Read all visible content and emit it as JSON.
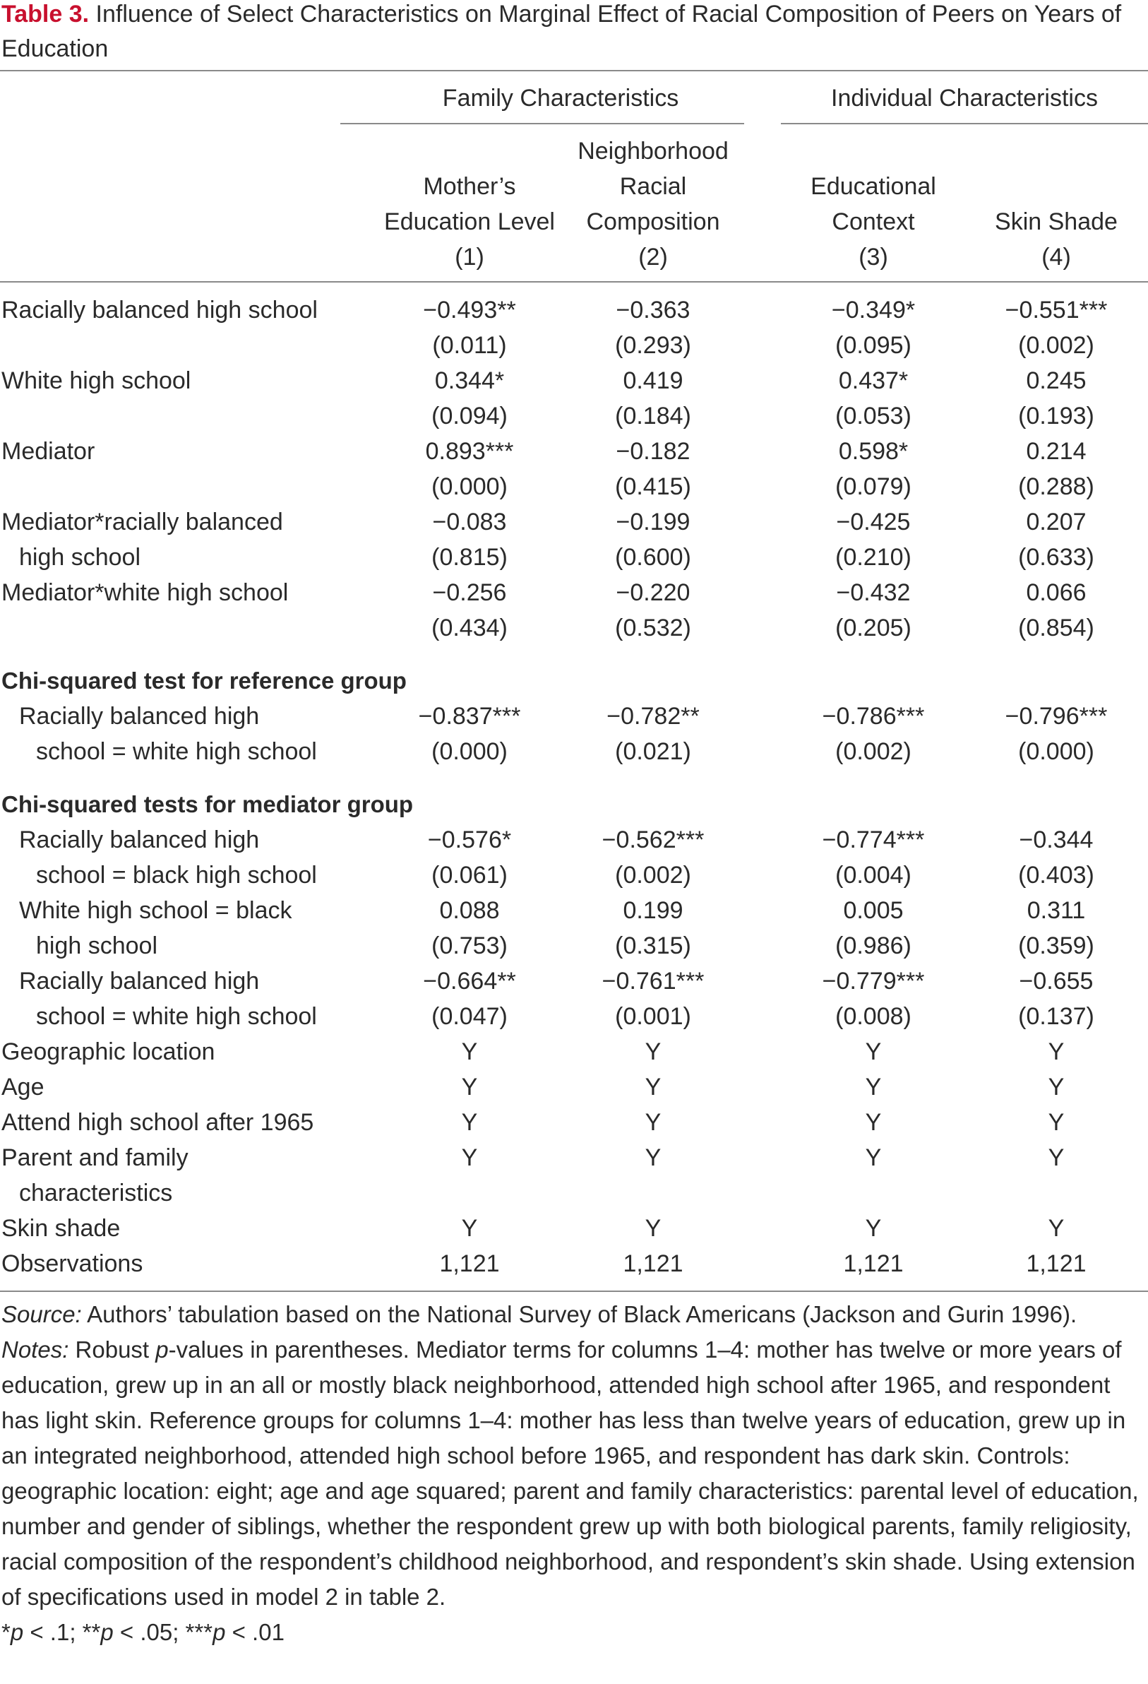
{
  "title": {
    "label": "Table 3.",
    "text": " Influence of Select Characteristics on Marginal Effect of Racial Composition of Peers on Years of Education"
  },
  "groups": [
    "Family Characteristics",
    "Individual Characteristics"
  ],
  "columns": [
    {
      "lines": [
        "Mother’s",
        "Education Level"
      ],
      "number": "(1)"
    },
    {
      "lines": [
        "Neighborhood",
        "Racial",
        "Composition"
      ],
      "number": "(2)"
    },
    {
      "lines": [
        "Educational",
        "Context"
      ],
      "number": "(3)"
    },
    {
      "lines": [
        "Skin Shade"
      ],
      "number": "(4)"
    }
  ],
  "rows": [
    {
      "label": "Racially balanced high school",
      "coef": [
        "−0.493**",
        "−0.363",
        "−0.349*",
        "−0.551***"
      ],
      "p": [
        "(0.011)",
        "(0.293)",
        "(0.095)",
        "(0.002)"
      ]
    },
    {
      "label": "White high school",
      "coef": [
        "0.344*",
        "0.419",
        "0.437*",
        "0.245"
      ],
      "p": [
        "(0.094)",
        "(0.184)",
        "(0.053)",
        "(0.193)"
      ]
    },
    {
      "label": "Mediator",
      "coef": [
        "0.893***",
        "−0.182",
        "0.598*",
        "0.214"
      ],
      "p": [
        "(0.000)",
        "(0.415)",
        "(0.079)",
        "(0.288)"
      ]
    },
    {
      "label": "Mediator*racially balanced",
      "label2": "high school",
      "coef": [
        "−0.083",
        "−0.199",
        "−0.425",
        "0.207"
      ],
      "p": [
        "(0.815)",
        "(0.600)",
        "(0.210)",
        "(0.633)"
      ]
    },
    {
      "label": "Mediator*white high school",
      "coef": [
        "−0.256",
        "−0.220",
        "−0.432",
        "0.066"
      ],
      "p": [
        "(0.434)",
        "(0.532)",
        "(0.205)",
        "(0.854)"
      ]
    }
  ],
  "ref_heading": "Chi-squared test for reference group",
  "ref_rows": [
    {
      "label": "Racially balanced high",
      "label2": "school = white high school",
      "coef": [
        "−0.837***",
        "−0.782**",
        "−0.786***",
        "−0.796***"
      ],
      "p": [
        "(0.000)",
        "(0.021)",
        "(0.002)",
        "(0.000)"
      ]
    }
  ],
  "med_heading": "Chi-squared tests for mediator group",
  "med_rows": [
    {
      "label": "Racially balanced high",
      "label2": "school = black high school",
      "coef": [
        "−0.576*",
        "−0.562***",
        "−0.774***",
        "−0.344"
      ],
      "p": [
        "(0.061)",
        "(0.002)",
        "(0.004)",
        "(0.403)"
      ]
    },
    {
      "label": "White high school = black",
      "label2": "high school",
      "coef": [
        "0.088",
        "0.199",
        "0.005",
        "0.311"
      ],
      "p": [
        "(0.753)",
        "(0.315)",
        "(0.986)",
        "(0.359)"
      ]
    },
    {
      "label": "Racially balanced high",
      "label2": "school = white high school",
      "coef": [
        "−0.664**",
        "−0.761***",
        "−0.779***",
        "−0.655"
      ],
      "p": [
        "(0.047)",
        "(0.001)",
        "(0.008)",
        "(0.137)"
      ]
    }
  ],
  "controls": [
    {
      "label": "Geographic location",
      "vals": [
        "Y",
        "Y",
        "Y",
        "Y"
      ]
    },
    {
      "label": "Age",
      "vals": [
        "Y",
        "Y",
        "Y",
        "Y"
      ]
    },
    {
      "label": "Attend high school after 1965",
      "vals": [
        "Y",
        "Y",
        "Y",
        "Y"
      ]
    },
    {
      "label": "Parent and family",
      "label2": "characteristics",
      "vals": [
        "Y",
        "Y",
        "Y",
        "Y"
      ]
    },
    {
      "label": "Skin shade",
      "vals": [
        "Y",
        "Y",
        "Y",
        "Y"
      ]
    },
    {
      "label": "Observations",
      "vals": [
        "1,121",
        "1,121",
        "1,121",
        "1,121"
      ]
    }
  ],
  "source": {
    "label": "Source:",
    "text": " Authors’ tabulation based on the National Survey of Black Americans (Jackson and Gurin 1996)."
  },
  "notes": {
    "label": "Notes:",
    "t1": " Robust ",
    "p": "p",
    "t2": "-values in parentheses. Mediator terms for columns 1–4: mother has twelve or more years of education, grew up in an all or mostly black neighborhood, attended high school after 1965, and respondent has light skin. Reference groups for columns 1–4: mother has less than twelve years of education, grew up in an integrated neighborhood, attended high school before 1965, and respondent has dark skin. Controls: geographic location: eight; age and age squared; parent and family characteristics: parental level of education, number and gender of siblings, whether the respondent grew up with both biological parents, family religiosity, racial composition of the respondent’s childhood neighborhood, and respondent’s skin shade. Using extension of specifications used in model 2 in table 2."
  },
  "sig": [
    {
      "stars": "*",
      "p": "p",
      "rest": " < .1; "
    },
    {
      "stars": "**",
      "p": "p",
      "rest": " < .05; "
    },
    {
      "stars": "***",
      "p": "p",
      "rest": " < .01"
    }
  ]
}
